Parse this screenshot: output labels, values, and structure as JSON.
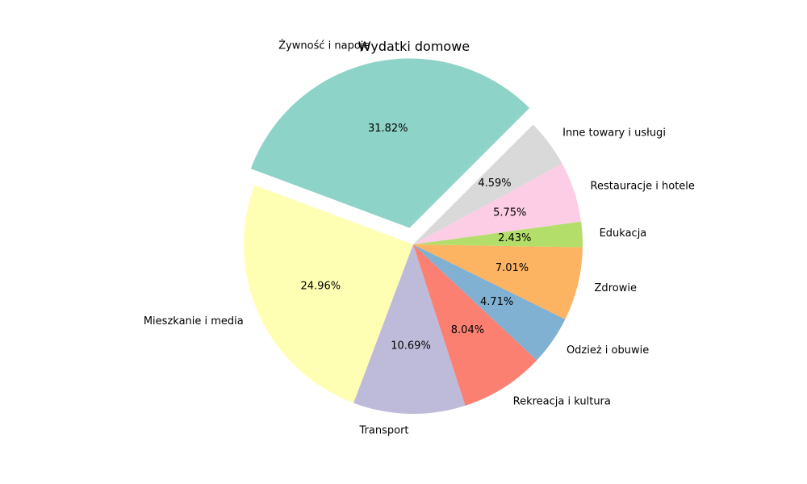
{
  "chart_data": {
    "type": "pie",
    "title": "Wydatki domowe",
    "slices": [
      {
        "label": "Żywność i napoje",
        "value": 31.82,
        "pct_text": "31.82%",
        "color": "#8dd3c7",
        "explode": true
      },
      {
        "label": "Mieszkanie i media",
        "value": 24.96,
        "pct_text": "24.96%",
        "color": "#ffffb3",
        "explode": false
      },
      {
        "label": "Transport",
        "value": 10.69,
        "pct_text": "10.69%",
        "color": "#bebada",
        "explode": false
      },
      {
        "label": "Rekreacja i kultura",
        "value": 8.04,
        "pct_text": "8.04%",
        "color": "#fb8072",
        "explode": false
      },
      {
        "label": "Odzież i obuwie",
        "value": 4.71,
        "pct_text": "4.71%",
        "color": "#80b1d3",
        "explode": false
      },
      {
        "label": "Zdrowie",
        "value": 7.01,
        "pct_text": "7.01%",
        "color": "#fdb462",
        "explode": false
      },
      {
        "label": "Edukacja",
        "value": 2.43,
        "pct_text": "2.43%",
        "color": "#b3de69",
        "explode": false
      },
      {
        "label": "Restauracje i hotele",
        "value": 5.75,
        "pct_text": "5.75%",
        "color": "#fccde5",
        "explode": false
      },
      {
        "label": "Inne towary i usługi",
        "value": 4.59,
        "pct_text": "4.59%",
        "color": "#d9d9d9",
        "explode": false
      }
    ],
    "start_angle_deg": 45,
    "direction": "counterclockwise"
  }
}
